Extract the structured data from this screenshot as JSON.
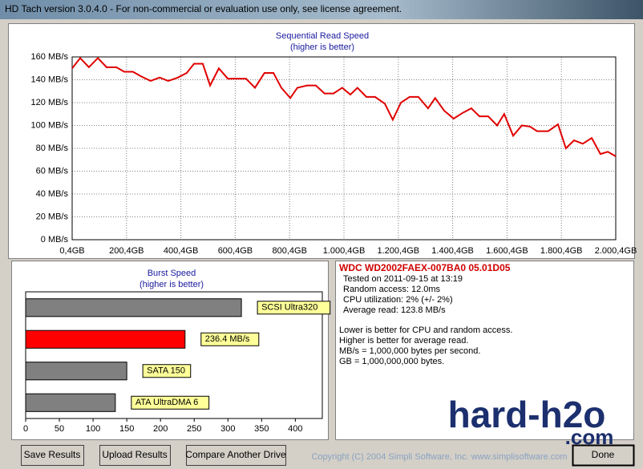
{
  "window": {
    "title": "HD Tach version 3.0.4.0  - For non-commercial or evaluation use only, see license agreement."
  },
  "chart_data": [
    {
      "type": "line",
      "title": "Sequential Read Speed",
      "subtitle": "(higher is better)",
      "x": [
        0.4,
        30,
        62,
        95,
        127,
        163,
        192,
        224,
        254,
        289,
        322,
        354,
        390,
        422,
        449,
        481,
        508,
        540,
        573,
        608,
        640,
        673,
        708,
        741,
        770,
        803,
        829,
        865,
        897,
        929,
        962,
        994,
        1024,
        1050,
        1083,
        1115,
        1151,
        1180,
        1210,
        1242,
        1274,
        1310,
        1336,
        1369,
        1404,
        1437,
        1469,
        1499,
        1531,
        1564,
        1590,
        1623,
        1655,
        1685,
        1711,
        1752,
        1788,
        1817,
        1847,
        1879,
        1912,
        1944,
        1971,
        2000.4
      ],
      "values": [
        150,
        159,
        151,
        159,
        151,
        151,
        147,
        147,
        143,
        139,
        142,
        139,
        142,
        146,
        154,
        154,
        135,
        150,
        141,
        141,
        141,
        133,
        146,
        146,
        133,
        124,
        133,
        135,
        135,
        128,
        128,
        133,
        127,
        133,
        125,
        125,
        119,
        105,
        120,
        125,
        125,
        115,
        124,
        113,
        106,
        111,
        115,
        108,
        108,
        100,
        110,
        91,
        100,
        99,
        95,
        95,
        101,
        80,
        87,
        84,
        89,
        75,
        77,
        73
      ],
      "color": "#e00000",
      "xlim": [
        0.4,
        2000.4
      ],
      "xticks": [
        {
          "value": 0.4,
          "label": "0,4GB"
        },
        {
          "value": 200.4,
          "label": "200,4GB"
        },
        {
          "value": 400.4,
          "label": "400,4GB"
        },
        {
          "value": 600.4,
          "label": "600,4GB"
        },
        {
          "value": 800.4,
          "label": "800,4GB"
        },
        {
          "value": 1000.4,
          "label": "1.000,4GB"
        },
        {
          "value": 1200.4,
          "label": "1.200,4GB"
        },
        {
          "value": 1400.4,
          "label": "1.400,4GB"
        },
        {
          "value": 1600.4,
          "label": "1.600,4GB"
        },
        {
          "value": 1800.4,
          "label": "1.800,4GB"
        },
        {
          "value": 2000.4,
          "label": "2.000,4GB"
        }
      ],
      "ylim": [
        0,
        160
      ],
      "yticks": [
        {
          "value": 0,
          "label": "0 MB/s"
        },
        {
          "value": 20,
          "label": "20 MB/s"
        },
        {
          "value": 40,
          "label": "40 MB/s"
        },
        {
          "value": 60,
          "label": "60 MB/s"
        },
        {
          "value": 80,
          "label": "80 MB/s"
        },
        {
          "value": 100,
          "label": "100 MB/s"
        },
        {
          "value": 120,
          "label": "120 MB/s"
        },
        {
          "value": 140,
          "label": "140 MB/s"
        },
        {
          "value": 160,
          "label": "160 MB/s"
        }
      ],
      "grid": true
    },
    {
      "type": "hbar",
      "title": "Burst Speed",
      "subtitle": "(higher is better)",
      "categories": [
        "SCSI Ultra320",
        null,
        "SATA 150",
        "ATA UltraDMA 6"
      ],
      "values": [
        320,
        236.4,
        150,
        133
      ],
      "value_labels": [
        null,
        "236.4 MB/s",
        null,
        null
      ],
      "colors": [
        "#808080",
        "#ff0000",
        "#808080",
        "#808080"
      ],
      "xlim": [
        0,
        440
      ],
      "xticks": [
        0,
        50,
        100,
        150,
        200,
        250,
        300,
        350,
        400
      ]
    }
  ],
  "info": {
    "drive": "WDC WD2002FAEX-007BA0 05.01D05",
    "lines": [
      "Tested on 2011-09-15 at 13:19",
      "Random access: 12.0ms",
      "CPU utilization: 2% (+/- 2%)",
      "Average read: 123.8 MB/s"
    ],
    "notes": [
      "Lower is better for CPU and random access.",
      "Higher is better for average read.",
      "MB/s = 1,000,000 bytes per second.",
      "GB = 1,000,000,000 bytes."
    ]
  },
  "buttons": [
    "Save Results",
    "Upload Results",
    "Compare Another Drive",
    "Done"
  ],
  "copyright": "Copyright (C) 2004 Simpli Software, Inc. www.simplisoftware.com",
  "watermark": {
    "main": "hard-h2o",
    "sub": ".com"
  }
}
